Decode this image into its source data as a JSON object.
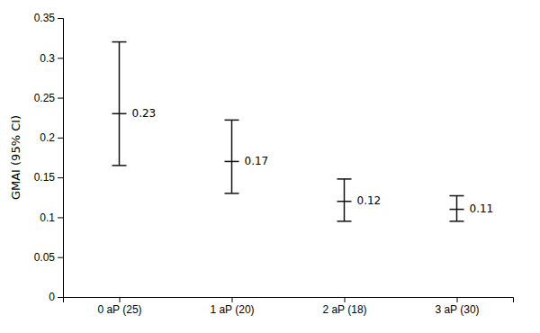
{
  "chart_data": {
    "type": "errorbar",
    "categories": [
      "0 aP (25)",
      "1 aP (20)",
      "2 aP (18)",
      "3 aP (30)"
    ],
    "values": [
      0.23,
      0.17,
      0.12,
      0.11
    ],
    "ci_low": [
      0.165,
      0.13,
      0.095,
      0.095
    ],
    "ci_high": [
      0.32,
      0.222,
      0.148,
      0.127
    ],
    "data_labels": true,
    "ylabel": "GMAI (95% CI)",
    "ylim": [
      0,
      0.35
    ],
    "yticks": [
      0,
      0.05,
      0.1,
      0.15,
      0.2,
      0.25,
      0.3,
      0.35
    ],
    "color": "#111111",
    "grid": false
  }
}
